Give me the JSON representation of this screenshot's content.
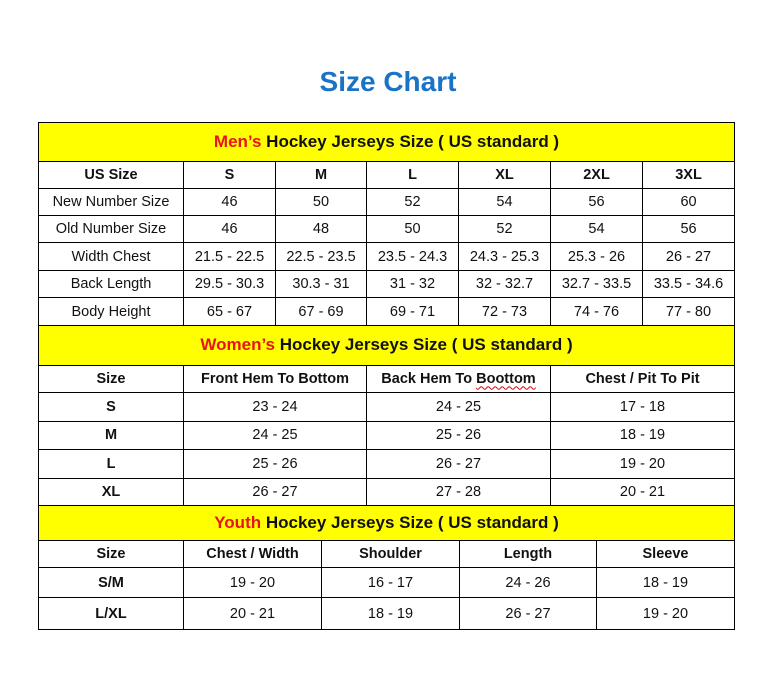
{
  "title": "Size Chart",
  "colors": {
    "title": "#1a73c4",
    "band": "#ffff00",
    "highlight": "#e8141b"
  },
  "sections": [
    {
      "id": "men",
      "heading_highlight": "Men’s",
      "heading_rest": " Hockey Jerseys Size ( US standard )",
      "headers": [
        "US Size",
        "S",
        "M",
        "L",
        "XL",
        "2XL",
        "3XL"
      ],
      "rows": [
        [
          "New Number Size",
          "46",
          "50",
          "52",
          "54",
          "56",
          "60"
        ],
        [
          "Old Number Size",
          "46",
          "48",
          "50",
          "52",
          "54",
          "56"
        ],
        [
          "Width Chest",
          "21.5 - 22.5",
          "22.5 - 23.5",
          "23.5 - 24.3",
          "24.3 - 25.3",
          "25.3 - 26",
          "26 - 27"
        ],
        [
          "Back Length",
          "29.5 - 30.3",
          "30.3 - 31",
          "31 - 32",
          "32 - 32.7",
          "32.7 - 33.5",
          "33.5 - 34.6"
        ],
        [
          "Body Height",
          "65 - 67",
          "67 - 69",
          "69 - 71",
          "72 - 73",
          "74 - 76",
          "77 - 80"
        ]
      ]
    },
    {
      "id": "women",
      "heading_highlight": "Women’s",
      "heading_rest": " Hockey Jerseys Size ( US standard )",
      "headers": [
        "Size",
        "Front Hem To Bottom",
        "Back Hem To Boottom",
        "Chest / Pit To Pit"
      ],
      "rows": [
        [
          "S",
          "23 - 24",
          "24 - 25",
          "17 - 18"
        ],
        [
          "M",
          "24 - 25",
          "25 - 26",
          "18 - 19"
        ],
        [
          "L",
          "25 - 26",
          "26 - 27",
          "19 - 20"
        ],
        [
          "XL",
          "26 - 27",
          "27 - 28",
          "20 - 21"
        ]
      ]
    },
    {
      "id": "youth",
      "heading_highlight": "Youth",
      "heading_rest": " Hockey Jerseys Size ( US standard )",
      "headers": [
        "Size",
        "Chest / Width",
        "Shoulder",
        "Length",
        "Sleeve"
      ],
      "rows": [
        [
          "S/M",
          "19 - 20",
          "16 - 17",
          "24 - 26",
          "18 - 19"
        ],
        [
          "L/XL",
          "20 - 21",
          "18 - 19",
          "26 - 27",
          "19 - 20"
        ]
      ]
    }
  ]
}
